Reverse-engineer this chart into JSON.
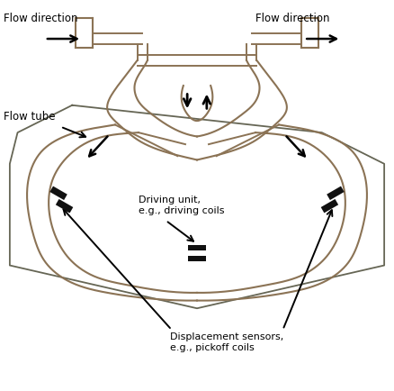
{
  "bg_color": "#ffffff",
  "tube_color": "#8B7355",
  "tube_lw": 1.5,
  "text_color": "#000000",
  "arrow_color": "#000000",
  "sensor_color": "#111111",
  "labels": {
    "flow_left": "Flow direction",
    "flow_right": "Flow direction",
    "flow_tube": "Flow tube",
    "driving_unit": "Driving unit,\ne.g., driving coils",
    "displacement": "Displacement sensors,\ne.g., pickoff coils"
  },
  "figsize": [
    4.38,
    4.35
  ],
  "dpi": 100
}
